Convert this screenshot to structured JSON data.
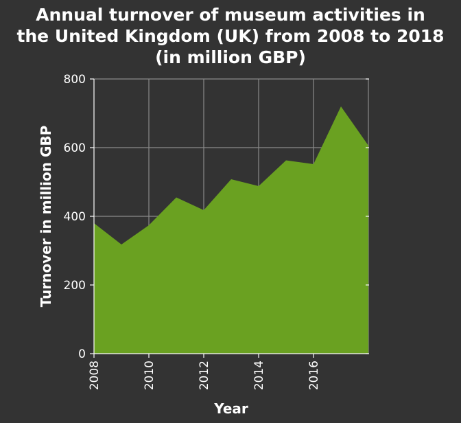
{
  "chart_data": {
    "type": "area",
    "title_lines": [
      "Annual turnover of museum activities in",
      "the United Kingdom (UK) from 2008 to 2018",
      "(in million GBP)"
    ],
    "xlabel": "Year",
    "ylabel": "Turnover in million GBP",
    "x": [
      2008,
      2009,
      2010,
      2011,
      2012,
      2013,
      2014,
      2015,
      2016,
      2017,
      2018
    ],
    "series": [
      {
        "values": [
          380,
          318,
          374,
          455,
          418,
          508,
          488,
          563,
          552,
          720,
          606
        ]
      }
    ],
    "xlim": [
      2008,
      2018
    ],
    "ylim": [
      0,
      800
    ],
    "xticks": [
      2008,
      2010,
      2012,
      2014,
      2016
    ],
    "yticks": [
      0,
      200,
      400,
      600,
      800
    ],
    "grid": true,
    "colors": {
      "area": "#6aa121",
      "background": "#333333",
      "text": "#ffffff",
      "grid": "#8a8a8a"
    }
  }
}
